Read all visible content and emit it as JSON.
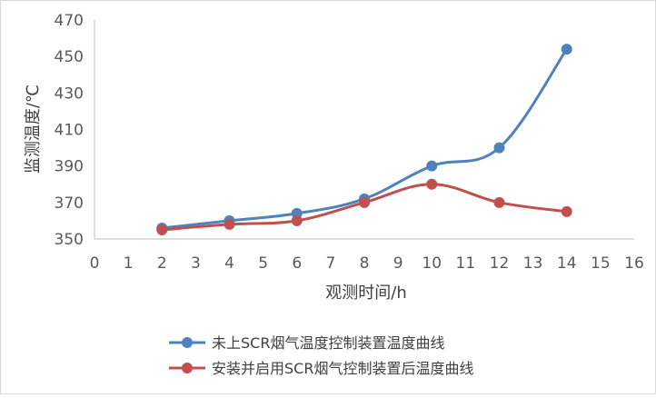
{
  "chart_data": {
    "type": "line",
    "title": "",
    "xlabel": "观测时间/h",
    "ylabel": "监测温度/℃",
    "xlim": [
      0,
      16
    ],
    "ylim": [
      350,
      470
    ],
    "x_ticks": [
      "0",
      "1",
      "2",
      "3",
      "4",
      "5",
      "6",
      "7",
      "8",
      "9",
      "10",
      "11",
      "12",
      "13",
      "14",
      "15",
      "16"
    ],
    "y_ticks": [
      "350",
      "370",
      "390",
      "410",
      "430",
      "450",
      "470"
    ],
    "grid": false,
    "smooth": true,
    "legend_position": "bottom",
    "series": [
      {
        "name": "未上SCR烟气温度控制装置温度曲线",
        "color": "#4F81BD",
        "x": [
          2,
          4,
          6,
          8,
          10,
          12,
          14
        ],
        "y": [
          356,
          360,
          364,
          372,
          390,
          400,
          454
        ]
      },
      {
        "name": "安装并启用SCR烟气控制装置后温度曲线",
        "color": "#C0504D",
        "x": [
          2,
          4,
          6,
          8,
          10,
          12,
          14
        ],
        "y": [
          355,
          358,
          360,
          370,
          380,
          370,
          365
        ]
      }
    ]
  }
}
